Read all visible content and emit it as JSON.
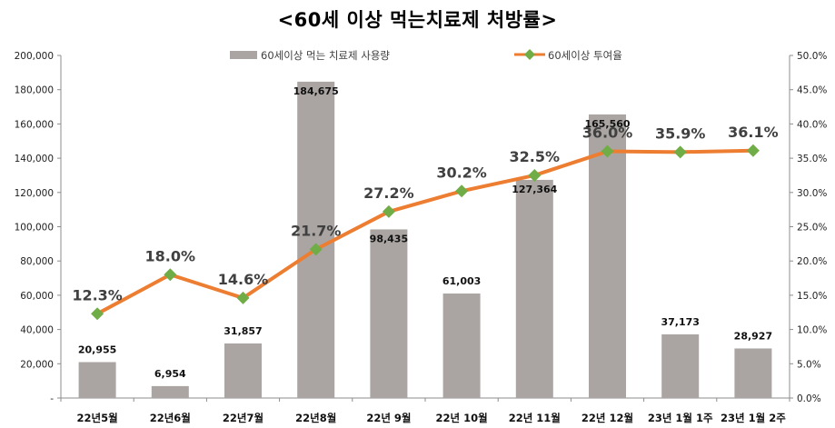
{
  "chart_data": {
    "type": "bar+line",
    "title": "<60세 이상 먹는치료제 처방률>",
    "categories": [
      "22년5월",
      "22년6월",
      "22년7월",
      "22년8월",
      "22년 9월",
      "22년 10월",
      "22년 11월",
      "22년 12월",
      "23년 1월 1주",
      "23년 1월 2주"
    ],
    "series": [
      {
        "name": "60세이상 먹는 치료제 사용량",
        "type": "bar",
        "axis": "left",
        "color": "#aaa5a3",
        "values": [
          20955,
          6954,
          31857,
          184675,
          98435,
          61003,
          127364,
          165560,
          37173,
          28927
        ],
        "labels": [
          "20,955",
          "6,954",
          "31,857",
          "184,675",
          "98,435",
          "61,003",
          "127,364",
          "165,560",
          "37,173",
          "28,927"
        ]
      },
      {
        "name": "60세이상 투여율",
        "type": "line",
        "axis": "right",
        "color": "#ed7d31",
        "marker_color": "#70ad47",
        "values": [
          12.3,
          18.0,
          14.6,
          21.7,
          27.2,
          30.2,
          32.5,
          36.0,
          35.9,
          36.1
        ],
        "labels": [
          "12.3%",
          "18.0%",
          "14.6%",
          "21.7%",
          "27.2%",
          "30.2%",
          "32.5%",
          "36.0%",
          "35.9%",
          "36.1%"
        ]
      }
    ],
    "y_left": {
      "ylim": [
        0,
        200000
      ],
      "ticks": [
        0,
        20000,
        40000,
        60000,
        80000,
        100000,
        120000,
        140000,
        160000,
        180000,
        200000
      ],
      "tick_labels": [
        "-",
        "20,000",
        "40,000",
        "60,000",
        "80,000",
        "100,000",
        "120,000",
        "140,000",
        "160,000",
        "180,000",
        "200,000"
      ]
    },
    "y_right": {
      "ylim": [
        0,
        50
      ],
      "ticks": [
        0,
        5,
        10,
        15,
        20,
        25,
        30,
        35,
        40,
        45,
        50
      ],
      "tick_labels": [
        "0.0%",
        "5.0%",
        "10.0%",
        "15.0%",
        "20.0%",
        "25.0%",
        "30.0%",
        "35.0%",
        "40.0%",
        "45.0%",
        "50.0%"
      ]
    },
    "legend_position": "top-center",
    "grid": false
  }
}
